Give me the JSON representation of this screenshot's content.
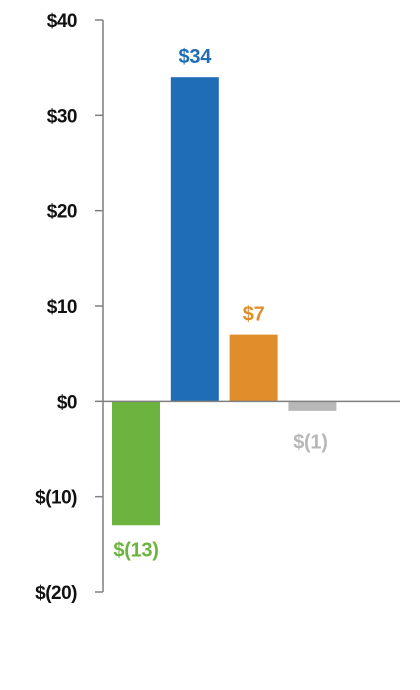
{
  "chart_data": {
    "type": "bar",
    "categories": [
      "",
      "",
      "",
      ""
    ],
    "values": [
      -13,
      34,
      7,
      -1
    ],
    "data_labels": [
      "$(13)",
      "$34",
      "$7",
      "$(1)"
    ],
    "colors": [
      "#6cb33f",
      "#1f6db7",
      "#e08e2b",
      "#b8b8b8"
    ],
    "title": "",
    "xlabel": "",
    "ylabel": "",
    "ylim": [
      -20,
      40
    ],
    "yticks": [
      40,
      30,
      20,
      10,
      0,
      -10,
      -20
    ],
    "ytick_labels": [
      "$40",
      "$30",
      "$20",
      "$10",
      "$0",
      "$(10)",
      "$(20)"
    ],
    "grid": false,
    "legend": "none",
    "axis_color": "#7f7f7f"
  }
}
